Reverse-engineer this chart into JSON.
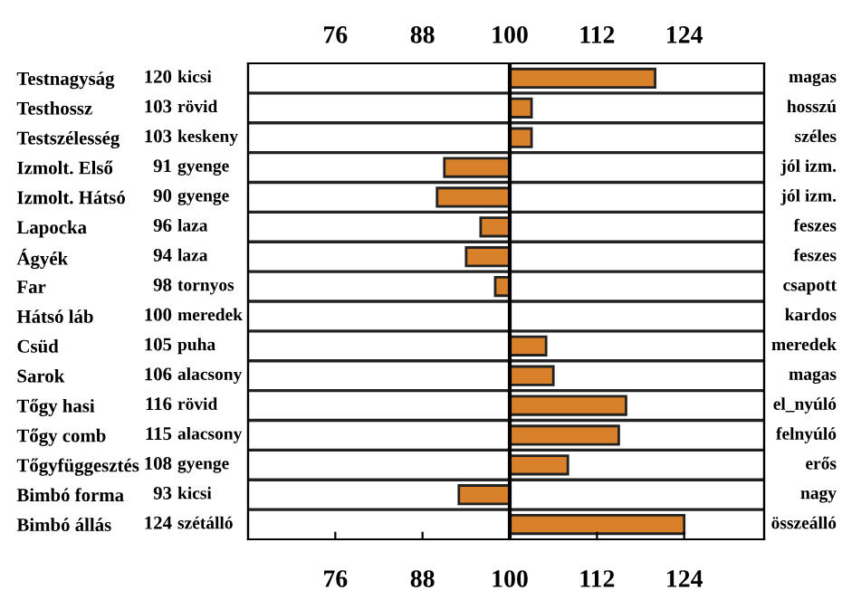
{
  "chart_data": {
    "type": "bar",
    "orientation": "horizontal",
    "categories": [
      "Testnagyság",
      "Testhossz",
      "Testszélesség",
      "Izmolt. Első",
      "Izmolt. Hátsó",
      "Lapocka",
      "Ágyék",
      "Far",
      "Hátsó láb",
      "Csüd",
      "Sarok",
      "Tőgy hasi",
      "Tőgy comb",
      "Tőgyfüggesztés",
      "Bimbó forma",
      "Bimbó állás"
    ],
    "base": [
      100,
      100,
      100,
      100,
      100,
      100,
      100,
      100,
      null,
      100,
      100,
      100,
      100,
      100,
      100,
      100
    ],
    "values": [
      20,
      3,
      3,
      -9,
      -10,
      -4,
      -6,
      -2,
      null,
      5,
      6,
      16,
      15,
      8,
      -7,
      24
    ],
    "value_labels": [
      "120",
      "103",
      "103",
      "91",
      "90",
      "96",
      "94",
      "98",
      "100",
      "105",
      "106",
      "116",
      "115",
      "108",
      "93",
      "124"
    ],
    "color": "#d8802a",
    "xlim": [
      64,
      135
    ],
    "xticks": [
      76,
      88,
      100,
      112,
      124
    ],
    "x2lim": [
      64,
      135
    ],
    "x2ticks": [
      76,
      88,
      100,
      112,
      124
    ],
    "ref_lines": [
      {
        "axis": "x",
        "value": 100,
        "color": "#000000"
      }
    ],
    "annotations": [
      "kicsi",
      "rövid",
      "keskeny",
      "gyenge",
      "gyenge",
      "laza",
      "laza",
      "tornyos",
      "meredek",
      "puha",
      "alacsony",
      "rövid",
      "alacsony",
      "gyenge",
      "kicsi",
      "szétálló",
      "magas",
      "hosszú",
      "széles",
      "jól izm.",
      "jól izm.",
      "feszes",
      "feszes",
      "csapott",
      "kardos",
      "meredek",
      "magas",
      "el_nyúló",
      "felnyúló",
      "erős",
      "nagy",
      "összeálló"
    ]
  }
}
